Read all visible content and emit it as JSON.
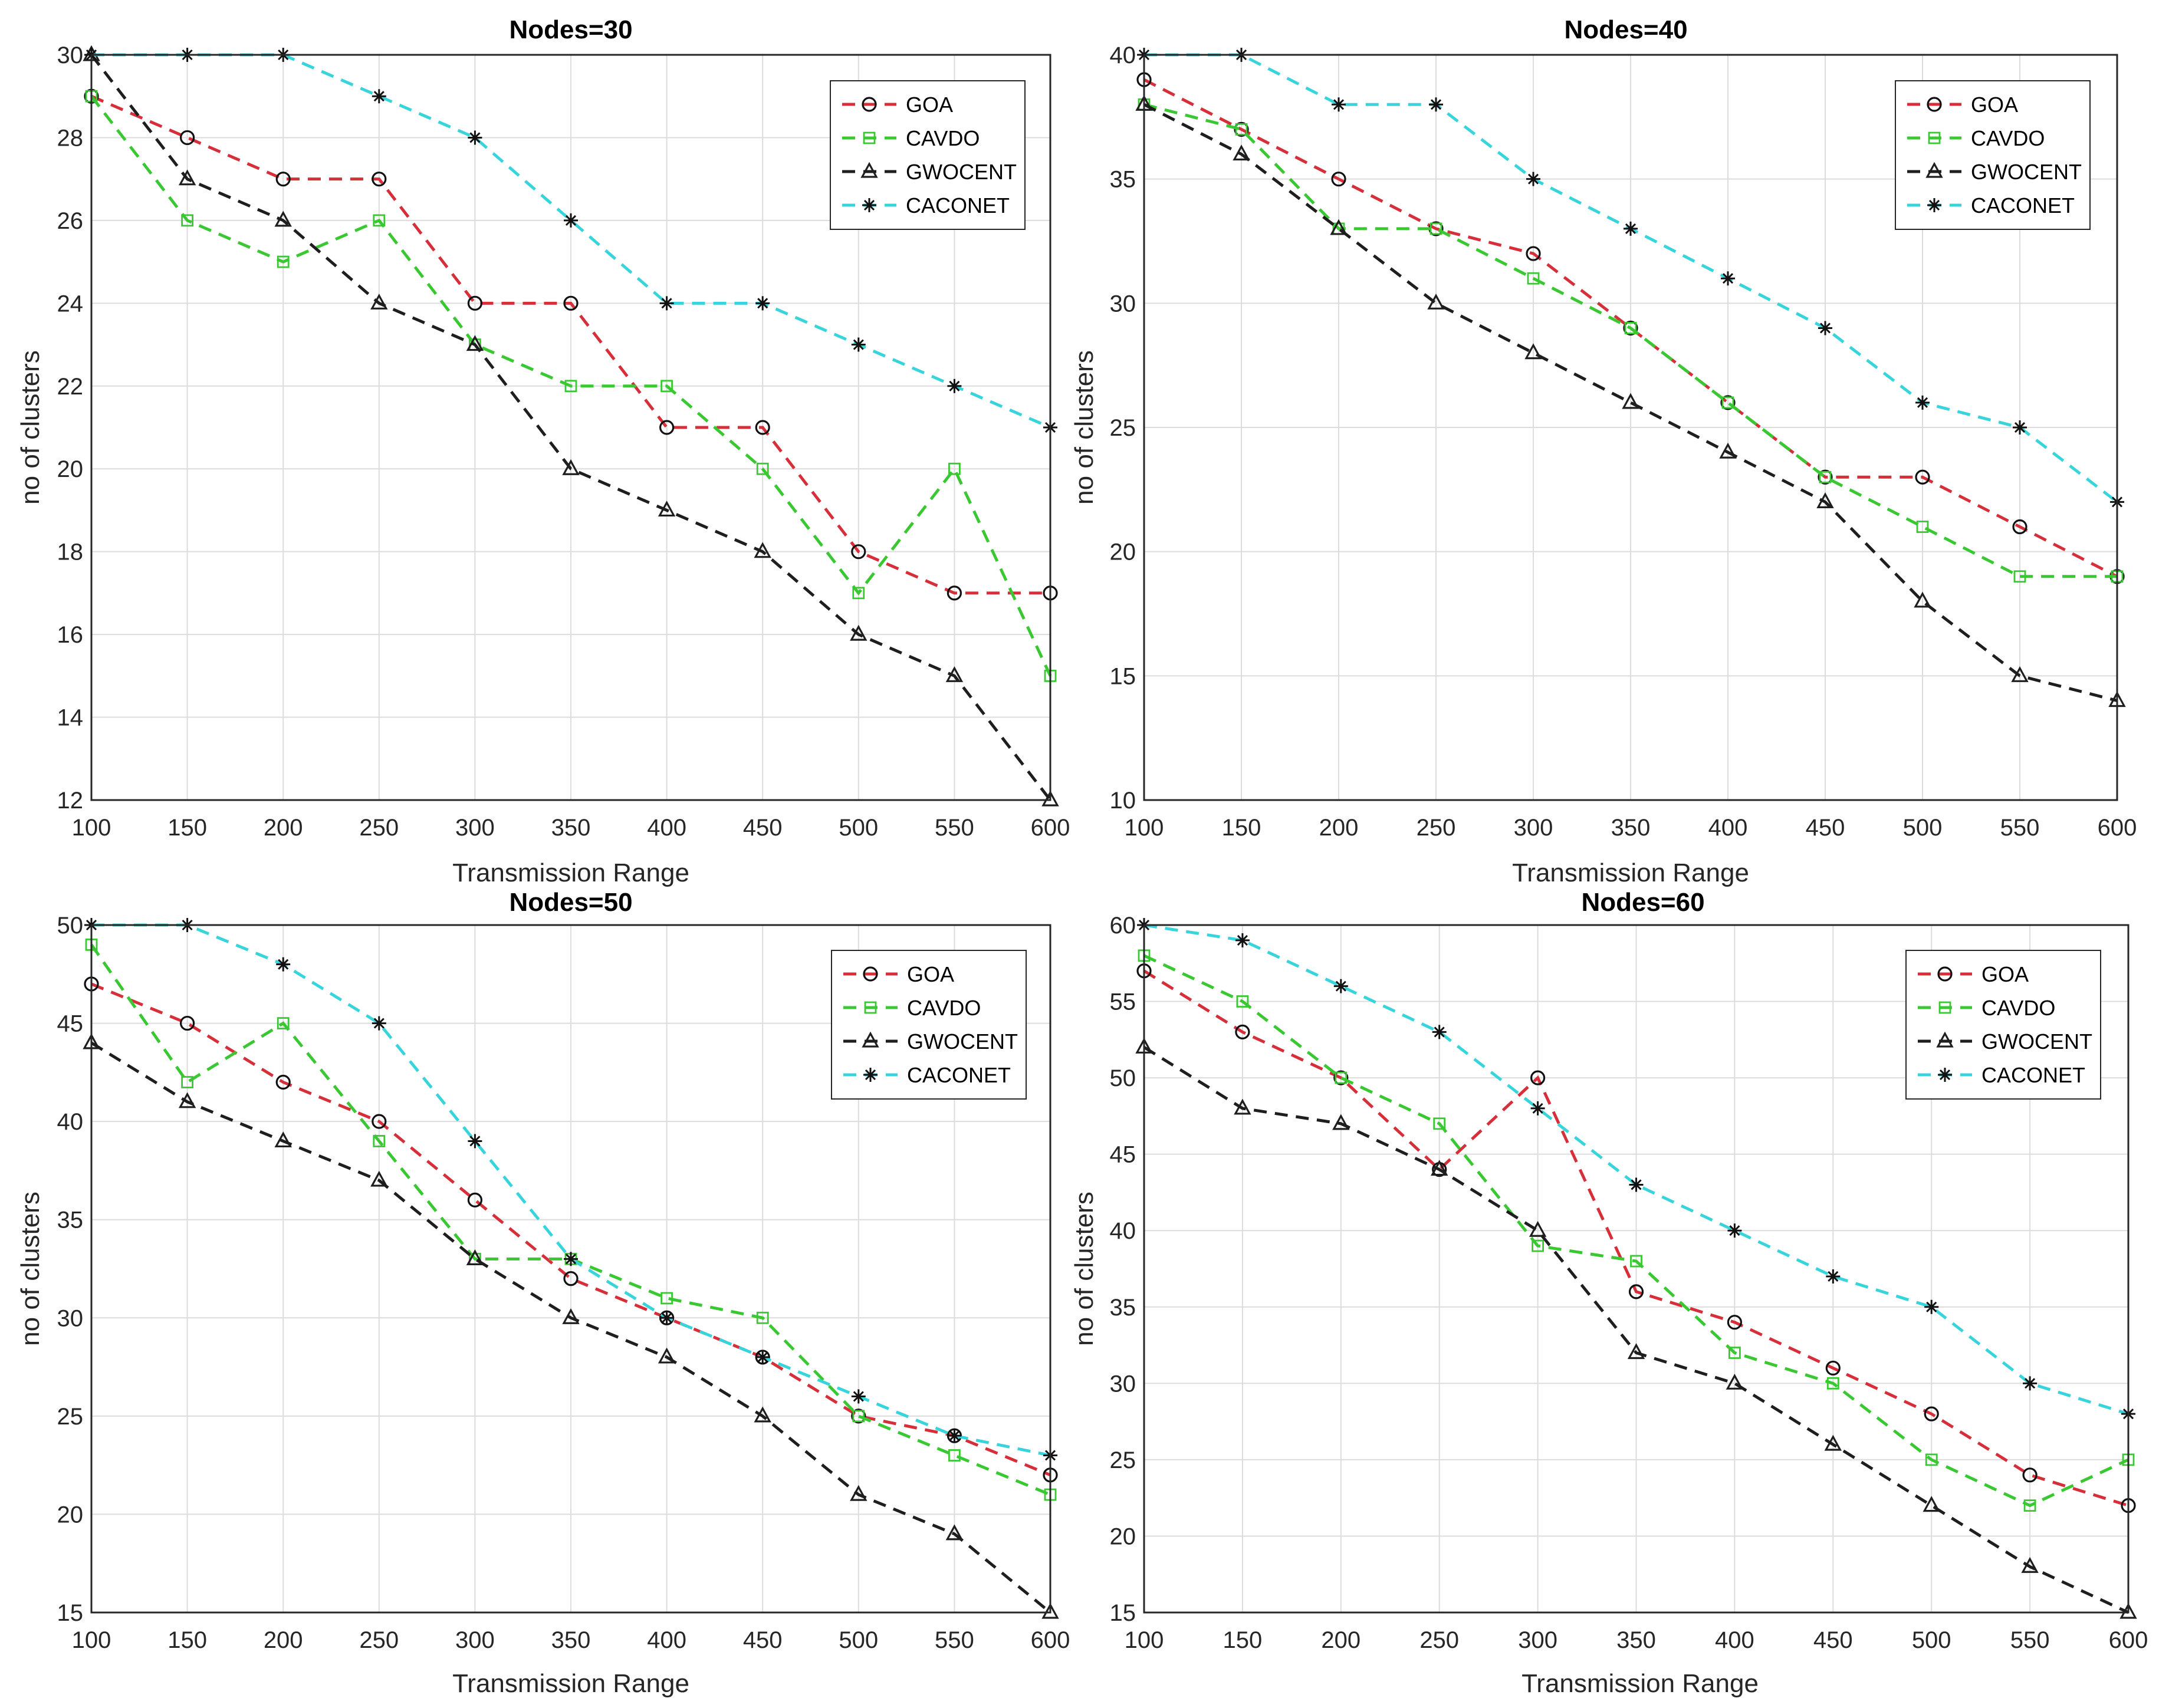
{
  "colors": {
    "GOA": "#d62f3a",
    "CAVDO": "#39c832",
    "GWOCENT": "#1e1e1e",
    "CACONET": "#38d4dc",
    "grid": "#dcdcdc",
    "axis": "#262626"
  },
  "chart_data": [
    {
      "type": "line",
      "title": "Nodes=30",
      "xlabel": "Transmission Range",
      "ylabel": "no of clusters",
      "x": [
        100,
        150,
        200,
        250,
        300,
        350,
        400,
        450,
        500,
        550,
        600
      ],
      "xlim": [
        100,
        600
      ],
      "ylim": [
        12,
        30
      ],
      "xticks": [
        "100",
        "150",
        "200",
        "250",
        "300",
        "350",
        "400",
        "450",
        "500",
        "550",
        "600"
      ],
      "yticks": [
        "12",
        "14",
        "16",
        "18",
        "20",
        "22",
        "24",
        "26",
        "28",
        "30"
      ],
      "grid": true,
      "legend": "top-right",
      "series": [
        {
          "name": "GOA",
          "marker": "circle",
          "values": [
            29,
            28,
            27,
            27,
            24,
            24,
            21,
            21,
            18,
            17,
            17
          ]
        },
        {
          "name": "CAVDO",
          "marker": "square",
          "values": [
            29,
            26,
            25,
            26,
            23,
            22,
            22,
            20,
            17,
            20,
            15
          ]
        },
        {
          "name": "GWOCENT",
          "marker": "triangle",
          "values": [
            30,
            27,
            26,
            24,
            23,
            20,
            19,
            18,
            16,
            15,
            12
          ]
        },
        {
          "name": "CACONET",
          "marker": "star",
          "values": [
            30,
            30,
            30,
            29,
            28,
            26,
            24,
            24,
            23,
            22,
            21
          ]
        }
      ]
    },
    {
      "type": "line",
      "title": "Nodes=40",
      "xlabel": "Transmission Range",
      "ylabel": "no of clusters",
      "x": [
        100,
        150,
        200,
        250,
        300,
        350,
        400,
        450,
        500,
        550,
        600
      ],
      "xlim": [
        100,
        600
      ],
      "ylim": [
        10,
        40
      ],
      "xticks": [
        "100",
        "150",
        "200",
        "250",
        "300",
        "350",
        "400",
        "450",
        "500",
        "550",
        "600"
      ],
      "yticks": [
        "10",
        "15",
        "20",
        "25",
        "30",
        "35",
        "40"
      ],
      "grid": true,
      "legend": "top-right",
      "series": [
        {
          "name": "GOA",
          "marker": "circle",
          "values": [
            39,
            37,
            35,
            33,
            32,
            29,
            26,
            23,
            23,
            21,
            19
          ]
        },
        {
          "name": "CAVDO",
          "marker": "square",
          "values": [
            38,
            37,
            33,
            33,
            31,
            29,
            26,
            23,
            21,
            19,
            19
          ]
        },
        {
          "name": "GWOCENT",
          "marker": "triangle",
          "values": [
            38,
            36,
            33,
            30,
            28,
            26,
            24,
            22,
            18,
            15,
            14
          ]
        },
        {
          "name": "CACONET",
          "marker": "star",
          "values": [
            40,
            40,
            38,
            38,
            35,
            33,
            31,
            29,
            26,
            25,
            22
          ]
        }
      ]
    },
    {
      "type": "line",
      "title": "Nodes=50",
      "xlabel": "Transmission Range",
      "ylabel": "no of clusters",
      "x": [
        100,
        150,
        200,
        250,
        300,
        350,
        400,
        450,
        500,
        550,
        600
      ],
      "xlim": [
        100,
        600
      ],
      "ylim": [
        15,
        50
      ],
      "xticks": [
        "100",
        "150",
        "200",
        "250",
        "300",
        "350",
        "400",
        "450",
        "500",
        "550",
        "600"
      ],
      "yticks": [
        "15",
        "20",
        "25",
        "30",
        "35",
        "40",
        "45",
        "50"
      ],
      "grid": true,
      "legend": "top-right",
      "series": [
        {
          "name": "GOA",
          "marker": "circle",
          "values": [
            47,
            45,
            42,
            40,
            36,
            32,
            30,
            28,
            25,
            24,
            22
          ]
        },
        {
          "name": "CAVDO",
          "marker": "square",
          "values": [
            49,
            42,
            45,
            39,
            33,
            33,
            31,
            30,
            25,
            23,
            21
          ]
        },
        {
          "name": "GWOCENT",
          "marker": "triangle",
          "values": [
            44,
            41,
            39,
            37,
            33,
            30,
            28,
            25,
            21,
            19,
            15
          ]
        },
        {
          "name": "CACONET",
          "marker": "star",
          "values": [
            50,
            50,
            48,
            45,
            39,
            33,
            30,
            28,
            26,
            24,
            23
          ]
        }
      ]
    },
    {
      "type": "line",
      "title": "Nodes=60",
      "xlabel": "Transmission Range",
      "ylabel": "no of clusters",
      "x": [
        100,
        150,
        200,
        250,
        300,
        350,
        400,
        450,
        500,
        550,
        600
      ],
      "xlim": [
        100,
        600
      ],
      "ylim": [
        15,
        60
      ],
      "xticks": [
        "100",
        "150",
        "200",
        "250",
        "300",
        "350",
        "400",
        "450",
        "500",
        "550",
        "600"
      ],
      "yticks": [
        "15",
        "20",
        "25",
        "30",
        "35",
        "40",
        "45",
        "50",
        "55",
        "60"
      ],
      "grid": true,
      "legend": "top-right",
      "series": [
        {
          "name": "GOA",
          "marker": "circle",
          "values": [
            57,
            53,
            50,
            44,
            50,
            36,
            34,
            31,
            28,
            24,
            22
          ]
        },
        {
          "name": "CAVDO",
          "marker": "square",
          "values": [
            58,
            55,
            50,
            47,
            39,
            38,
            32,
            30,
            25,
            22,
            25
          ]
        },
        {
          "name": "GWOCENT",
          "marker": "triangle",
          "values": [
            52,
            48,
            47,
            44,
            40,
            32,
            30,
            26,
            22,
            18,
            15
          ]
        },
        {
          "name": "CACONET",
          "marker": "star",
          "values": [
            60,
            59,
            56,
            53,
            48,
            43,
            40,
            37,
            35,
            30,
            28
          ]
        }
      ]
    }
  ]
}
